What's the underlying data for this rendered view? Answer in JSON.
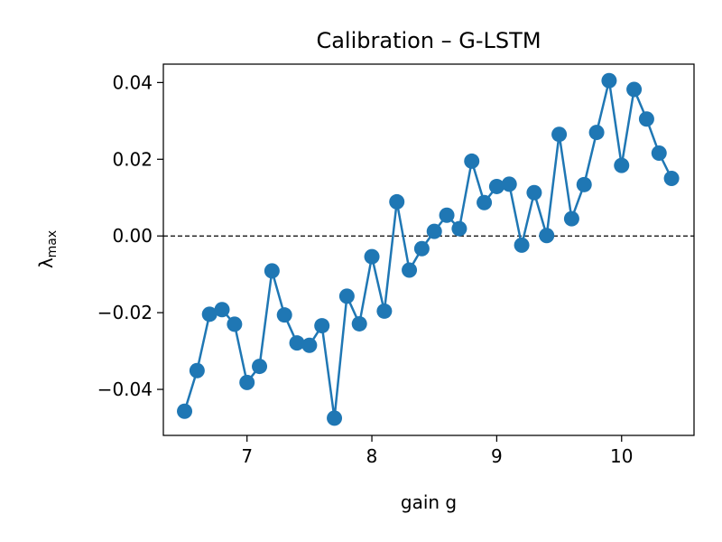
{
  "chart_data": {
    "type": "line",
    "title": "Calibration – G-LSTM",
    "xlabel": "gain  g",
    "ylabel_main": "λ",
    "ylabel_sub": "max",
    "xlim": [
      6.33,
      10.58
    ],
    "ylim": [
      -0.052,
      0.0448
    ],
    "xticks": [
      7,
      8,
      9,
      10
    ],
    "xtick_labels": [
      "7",
      "8",
      "9",
      "10"
    ],
    "yticks": [
      -0.04,
      -0.02,
      0.0,
      0.02,
      0.04
    ],
    "ytick_labels": [
      "−0.04",
      "−0.02",
      "0.00",
      "0.02",
      "0.04"
    ],
    "reference_line": {
      "y": 0.0,
      "style": "dashed",
      "color": "#000000"
    },
    "grid": false,
    "legend": "none",
    "series": [
      {
        "color": "#1f77b4",
        "marker": "circle",
        "x": [
          6.5,
          6.6,
          6.7,
          6.8,
          6.9,
          7.0,
          7.1,
          7.2,
          7.3,
          7.4,
          7.5,
          7.6,
          7.7,
          7.8,
          7.9,
          8.0,
          8.1,
          8.2,
          8.3,
          8.4,
          8.5,
          8.6,
          8.7,
          8.8,
          8.9,
          9.0,
          9.1,
          9.2,
          9.3,
          9.4,
          9.5,
          9.6,
          9.7,
          9.8,
          9.9,
          10.0,
          10.1,
          10.2,
          10.3,
          10.4
        ],
        "y": [
          -0.0457,
          -0.0351,
          -0.0204,
          -0.0192,
          -0.023,
          -0.0382,
          -0.034,
          -0.0091,
          -0.0206,
          -0.0279,
          -0.0285,
          -0.0234,
          -0.0475,
          -0.0157,
          -0.0229,
          -0.0054,
          -0.0196,
          0.0089,
          -0.0089,
          -0.0033,
          0.0012,
          0.0054,
          0.0019,
          0.0195,
          0.0087,
          0.0129,
          0.0135,
          -0.0024,
          0.0113,
          0.0001,
          0.0265,
          0.0045,
          0.0134,
          0.027,
          0.0405,
          0.0184,
          0.0382,
          0.0305,
          0.0216,
          0.015
        ]
      }
    ]
  }
}
